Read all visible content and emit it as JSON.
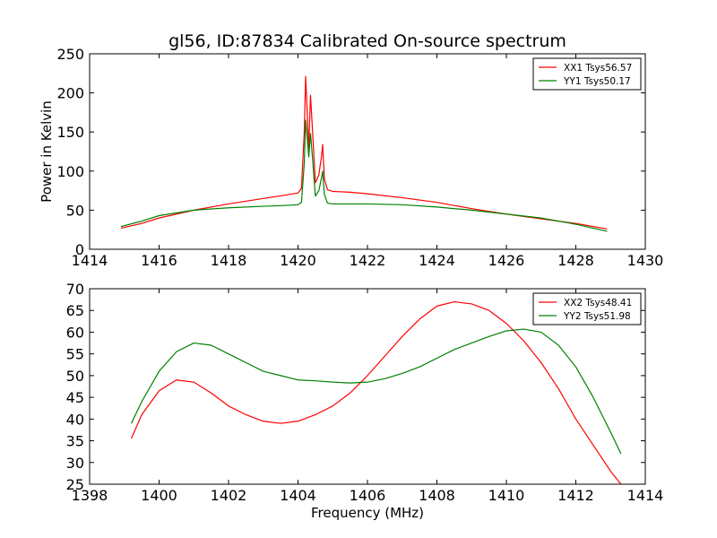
{
  "chart_data": [
    {
      "type": "line",
      "title": "gl56, ID:87834 Calibrated On-source spectrum",
      "ylabel": "Power in Kelvin",
      "xlabel": "",
      "xlim": [
        1414,
        1430
      ],
      "ylim": [
        0,
        250
      ],
      "xticks": [
        "1414",
        "1416",
        "1418",
        "1420",
        "1422",
        "1424",
        "1426",
        "1428",
        "1430"
      ],
      "yticks": [
        "0",
        "50",
        "100",
        "150",
        "200",
        "250"
      ],
      "legend_position": "top-right",
      "series": [
        {
          "name": "XX1 Tsys56.57",
          "color": "#ff0000",
          "x": [
            1414.9,
            1415.5,
            1416.0,
            1417.0,
            1418.0,
            1419.0,
            1419.6,
            1420.0,
            1420.1,
            1420.18,
            1420.22,
            1420.27,
            1420.31,
            1420.36,
            1420.42,
            1420.5,
            1420.6,
            1420.68,
            1420.71,
            1420.76,
            1420.85,
            1421.0,
            1421.5,
            1422.0,
            1423.0,
            1424.0,
            1425.0,
            1426.0,
            1427.0,
            1428.0,
            1428.9
          ],
          "y": [
            27,
            33,
            40,
            50,
            58,
            65,
            69,
            72,
            78,
            150,
            221,
            170,
            130,
            197,
            150,
            85,
            95,
            120,
            134,
            90,
            76,
            74,
            73,
            71,
            66,
            60,
            52,
            45,
            39,
            33,
            26
          ]
        },
        {
          "name": "YY1 Tsys50.17",
          "color": "#008000",
          "x": [
            1414.9,
            1415.5,
            1416.0,
            1417.0,
            1418.0,
            1419.0,
            1419.6,
            1420.0,
            1420.1,
            1420.18,
            1420.22,
            1420.27,
            1420.31,
            1420.36,
            1420.42,
            1420.5,
            1420.6,
            1420.68,
            1420.71,
            1420.76,
            1420.85,
            1421.0,
            1421.5,
            1422.0,
            1423.0,
            1424.0,
            1425.0,
            1426.0,
            1427.0,
            1428.0,
            1428.9
          ],
          "y": [
            29,
            36,
            43,
            50,
            53,
            55,
            56,
            57,
            60,
            110,
            165,
            140,
            118,
            148,
            115,
            68,
            75,
            92,
            100,
            70,
            59,
            58,
            58,
            58,
            57,
            54,
            50,
            45,
            40,
            32,
            23
          ]
        }
      ]
    },
    {
      "type": "line",
      "title": "",
      "xlabel": "Frequency (MHz)",
      "ylabel": "",
      "xlim": [
        1398,
        1414
      ],
      "ylim": [
        25,
        70
      ],
      "xticks": [
        "1398",
        "1400",
        "1402",
        "1404",
        "1406",
        "1408",
        "1410",
        "1412",
        "1414"
      ],
      "yticks": [
        "25",
        "30",
        "35",
        "40",
        "45",
        "50",
        "55",
        "60",
        "65",
        "70"
      ],
      "legend_position": "top-right",
      "series": [
        {
          "name": "XX2 Tsys48.41",
          "color": "#ff0000",
          "x": [
            1399.2,
            1399.5,
            1400.0,
            1400.5,
            1401.0,
            1401.5,
            1402.0,
            1402.5,
            1403.0,
            1403.5,
            1404.0,
            1404.5,
            1405.0,
            1405.5,
            1406.0,
            1406.5,
            1407.0,
            1407.5,
            1408.0,
            1408.5,
            1409.0,
            1409.5,
            1410.0,
            1410.5,
            1411.0,
            1411.5,
            1412.0,
            1412.5,
            1413.0,
            1413.3
          ],
          "y": [
            35.5,
            41,
            46.5,
            49,
            48.5,
            46,
            43,
            41,
            39.5,
            39,
            39.5,
            41,
            43,
            46,
            50,
            54.5,
            59,
            63,
            66,
            67,
            66.5,
            65,
            62,
            58,
            53,
            47,
            40,
            34,
            28,
            25
          ]
        },
        {
          "name": "YY2 Tsys51.98",
          "color": "#008000",
          "x": [
            1399.2,
            1399.5,
            1400.0,
            1400.5,
            1401.0,
            1401.5,
            1402.0,
            1402.5,
            1403.0,
            1403.5,
            1404.0,
            1404.5,
            1405.0,
            1405.5,
            1406.0,
            1406.5,
            1407.0,
            1407.5,
            1408.0,
            1408.5,
            1409.0,
            1409.5,
            1410.0,
            1410.5,
            1411.0,
            1411.5,
            1412.0,
            1412.5,
            1413.0,
            1413.3
          ],
          "y": [
            39,
            44,
            51,
            55.5,
            57.5,
            57,
            55,
            53,
            51,
            50,
            49,
            48.8,
            48.5,
            48.3,
            48.5,
            49.3,
            50.5,
            52,
            54,
            56,
            57.5,
            59,
            60.3,
            60.7,
            60,
            57,
            52,
            45,
            37,
            32
          ]
        }
      ]
    }
  ]
}
